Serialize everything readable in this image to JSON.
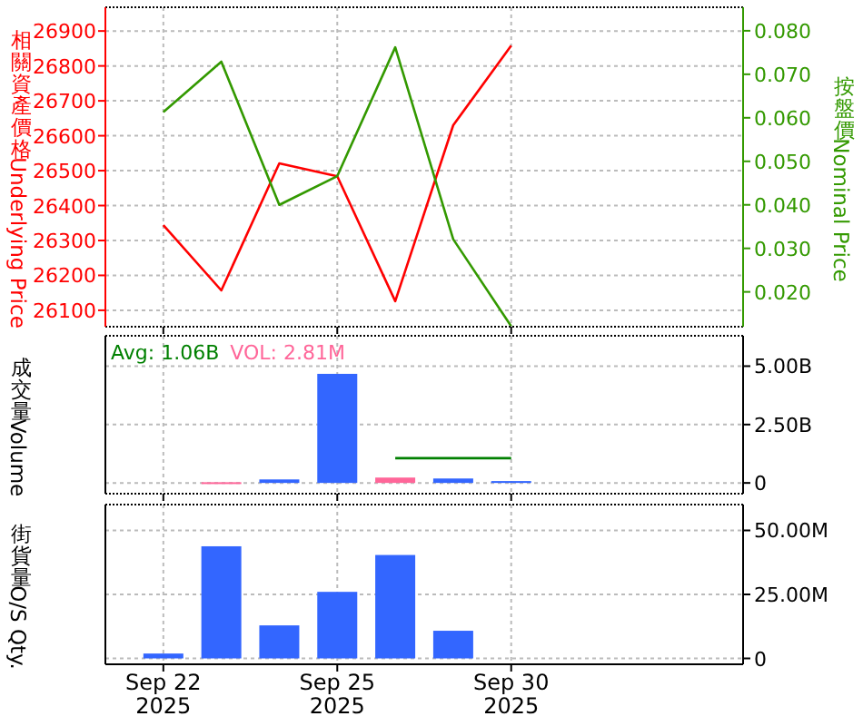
{
  "chart_data": [
    {
      "type": "line",
      "ylabel": "相關資產價格Underlying Price",
      "y2label": "按盤價Nominal Price",
      "categories": [
        null,
        null,
        null,
        null,
        null,
        null,
        null,
        null,
        null,
        null,
        null,
        null
      ],
      "series": [
        {
          "color": "#ff0000",
          "values": [
            null,
            26344,
            26157,
            26521,
            26484,
            26126,
            26630,
            26858,
            null,
            null,
            null,
            null
          ]
        },
        {
          "color": "#339900",
          "axis": "y2",
          "values": [
            null,
            0.0613,
            0.0729,
            0.04,
            0.0466,
            0.0762,
            0.0321,
            0.0121,
            null,
            null,
            null,
            null
          ]
        }
      ],
      "ylim": [
        26053,
        26968
      ],
      "yticks": [
        26100,
        26200,
        26300,
        26400,
        26500,
        26600,
        26700,
        26800,
        26900
      ],
      "y2lim": [
        0.012,
        0.0854
      ],
      "y2ticks": [
        {
          "value": 0.02,
          "label": "0.020"
        },
        {
          "value": 0.03,
          "label": "0.030"
        },
        {
          "value": 0.04,
          "label": "0.040"
        },
        {
          "value": 0.05,
          "label": "0.050"
        },
        {
          "value": 0.06,
          "label": "0.060"
        },
        {
          "value": 0.07,
          "label": "0.070"
        },
        {
          "value": 0.08,
          "label": "0.080"
        }
      ],
      "grid": true,
      "tick_labels": "y"
    },
    {
      "type": "bar",
      "ylabel": "成交量Volume",
      "annotations": [
        "Avg: 1.06B",
        "VOL: 2.81M"
      ],
      "categories": [
        null,
        null,
        null,
        null,
        null,
        null,
        null,
        null,
        null,
        null,
        null,
        null
      ],
      "series": [
        {
          "axis": "y2",
          "colors": [
            null,
            null,
            "#ff6699",
            "#3366ff",
            "#3366ff",
            "#ff6699",
            "#3366ff",
            "#3366ff",
            null,
            null,
            null,
            null
          ],
          "values": [
            null,
            null,
            0.03,
            0.15,
            4.67,
            0.23,
            0.19,
            0.08,
            null,
            null,
            null,
            null
          ]
        },
        {
          "type": "line",
          "axis": "y2",
          "color": "#008000",
          "values": [
            null,
            null,
            null,
            null,
            null,
            1.06,
            1.06,
            1.06,
            null,
            null,
            null,
            null
          ]
        }
      ],
      "y2lim": [
        -0.46,
        6.3
      ],
      "y2ticks": [
        0,
        {
          "value": 2.5,
          "label": "2.50B"
        },
        {
          "value": 5,
          "label": "5.00B"
        }
      ],
      "grid": true,
      "tick_labels": "y"
    },
    {
      "type": "bar",
      "ylabel": "街貨量O/S Qty.",
      "categories": [
        null,
        "Sep 22\n2025",
        null,
        null,
        "Sep 25\n2025",
        null,
        null,
        "Sep 30\n2025",
        null,
        null,
        null,
        null
      ],
      "series": [
        {
          "axis": "y2",
          "color": "#3366ff",
          "values": [
            null,
            1.9,
            43.8,
            12.9,
            26.0,
            40.4,
            10.8,
            null,
            null,
            null,
            null,
            null
          ]
        }
      ],
      "y2lim": [
        -2.3,
        60.1
      ],
      "y2ticks": [
        0,
        {
          "value": 25,
          "label": "25.00M"
        },
        {
          "value": 50,
          "label": "50.00M"
        }
      ],
      "grid": true
    }
  ]
}
